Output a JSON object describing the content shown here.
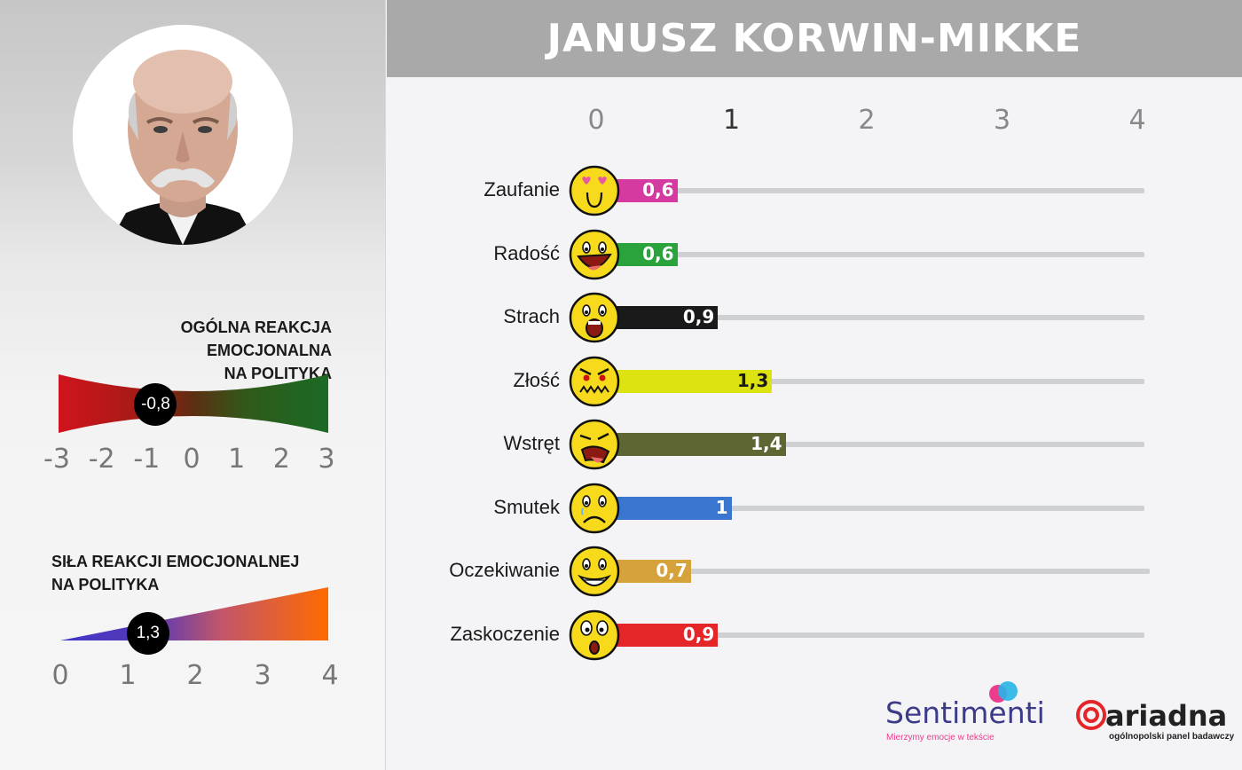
{
  "title": "JANUSZ KORWIN-MIKKE",
  "photo_alt": "portrait",
  "overall": {
    "title_line1": "OGÓLNA REAKCJA EMOCJONALNA",
    "title_line2": "NA POLITYKA",
    "value": -0.8,
    "value_label": "-0,8",
    "scale": [
      "-3",
      "-2",
      "-1",
      "0",
      "1",
      "2",
      "3"
    ],
    "range": [
      -3,
      3
    ]
  },
  "strength": {
    "title_line1": "SIŁA REAKCJI EMOCJONALNEJ",
    "title_line2": "NA POLITYKA",
    "value": 1.3,
    "value_label": "1,3",
    "scale": [
      "0",
      "1",
      "2",
      "3",
      "4"
    ],
    "range": [
      0,
      4
    ]
  },
  "chart_data": {
    "type": "bar",
    "orientation": "horizontal",
    "title": "JANUSZ KORWIN-MIKKE",
    "xlim": [
      0,
      4
    ],
    "x_ticks": [
      "0",
      "1",
      "2",
      "3",
      "4"
    ],
    "categories": [
      "Zaufanie",
      "Radość",
      "Strach",
      "Złość",
      "Wstręt",
      "Smutek",
      "Oczekiwanie",
      "Zaskoczenie"
    ],
    "values": [
      0.6,
      0.6,
      0.9,
      1.3,
      1.4,
      1.0,
      0.7,
      0.9
    ],
    "value_labels": [
      "0,6",
      "0,6",
      "0,9",
      "1,3",
      "1,4",
      "1",
      "0,7",
      "0,9"
    ],
    "colors": [
      "#d43aa0",
      "#2aa33c",
      "#1a1a1a",
      "#dde311",
      "#5e6733",
      "#3a75cf",
      "#d6a23c",
      "#e52628"
    ],
    "label_colors": [
      "#ffffff",
      "#ffffff",
      "#ffffff",
      "#1a1a1a",
      "#ffffff",
      "#ffffff",
      "#ffffff",
      "#ffffff"
    ],
    "icons": [
      "in-love-emoji-icon",
      "laughing-emoji-icon",
      "scared-emoji-icon",
      "angry-emoji-icon",
      "disgusted-emoji-icon",
      "sad-emoji-icon",
      "grinning-emoji-icon",
      "surprised-emoji-icon"
    ]
  },
  "logos": {
    "sentimenti_name": "Sentimenti",
    "sentimenti_tagline": "Mierzymy emocje w tekście",
    "ariadna_name": "ariadna",
    "ariadna_tagline": "ogólnopolski panel badawczy"
  },
  "colors": {
    "header_bg": "#a9a9a9",
    "track": "#cfd0d4",
    "negative": "#d0141d",
    "positive": "#1b6a25",
    "strength_low": "#3f35c8",
    "strength_high": "#ff6a00"
  }
}
